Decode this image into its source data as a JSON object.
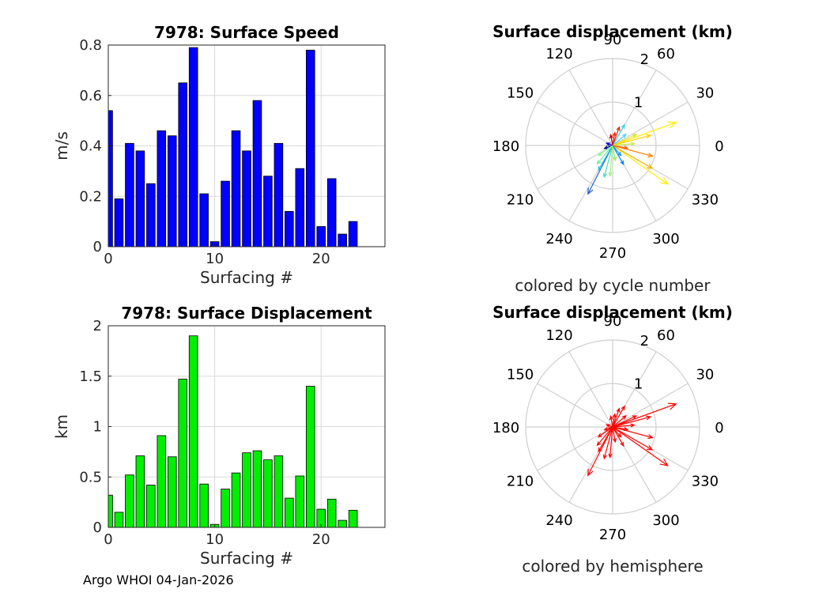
{
  "footer": "Argo WHOI 04-Jan-2026",
  "colors": {
    "speed_bar": "#0000ff",
    "disp_bar": "#00ee00",
    "grid": "#d9d9d9",
    "hemisphere_arrow": "#ff0000"
  },
  "chart_data": [
    {
      "id": "speed",
      "type": "bar",
      "title": "7978: Surface Speed",
      "xlabel": "Surfacing #",
      "ylabel": "m/s",
      "xlim": [
        0,
        26
      ],
      "ylim": [
        0,
        0.8
      ],
      "xticks": [
        0,
        10,
        20
      ],
      "xtick_labels": [
        "0",
        "10",
        "20"
      ],
      "yticks": [
        0,
        0.2,
        0.4,
        0.6,
        0.8
      ],
      "ytick_labels": [
        "0",
        "0.2",
        "0.4",
        "0.6",
        "0.8"
      ],
      "x": [
        0,
        1,
        2,
        3,
        4,
        5,
        6,
        7,
        8,
        9,
        10,
        11,
        12,
        13,
        14,
        15,
        16,
        17,
        18,
        19,
        20,
        21,
        22,
        23
      ],
      "values": [
        0.54,
        0.19,
        0.41,
        0.38,
        0.25,
        0.46,
        0.44,
        0.65,
        0.79,
        0.21,
        0.02,
        0.26,
        0.46,
        0.38,
        0.58,
        0.28,
        0.41,
        0.14,
        0.31,
        0.78,
        0.08,
        0.27,
        0.05,
        0.1
      ],
      "grid": true
    },
    {
      "id": "displacement",
      "type": "bar",
      "title": "7978: Surface Displacement",
      "xlabel": "Surfacing #",
      "ylabel": "km",
      "xlim": [
        0,
        26
      ],
      "ylim": [
        0,
        2
      ],
      "xticks": [
        0,
        10,
        20
      ],
      "xtick_labels": [
        "0",
        "10",
        "20"
      ],
      "yticks": [
        0,
        0.5,
        1,
        1.5,
        2
      ],
      "ytick_labels": [
        "0",
        "0.5",
        "1",
        "1.5",
        "2"
      ],
      "x": [
        0,
        1,
        2,
        3,
        4,
        5,
        6,
        7,
        8,
        9,
        10,
        11,
        12,
        13,
        14,
        15,
        16,
        17,
        18,
        19,
        20,
        21,
        22,
        23
      ],
      "values": [
        0.32,
        0.15,
        0.52,
        0.71,
        0.42,
        0.91,
        0.7,
        1.47,
        1.9,
        0.43,
        0.03,
        0.38,
        0.54,
        0.74,
        0.76,
        0.67,
        0.71,
        0.29,
        0.51,
        1.4,
        0.18,
        0.28,
        0.07,
        0.17
      ],
      "grid": true
    },
    {
      "id": "polar_cycle",
      "type": "polar-vectors",
      "title": "Surface displacement (km)",
      "caption": "colored by cycle number",
      "rmax": 2,
      "rticks": [
        1,
        2
      ],
      "rtick_labels": [
        "1",
        "2"
      ],
      "angle_ticks": [
        0,
        30,
        60,
        90,
        120,
        150,
        180,
        210,
        240,
        270,
        300,
        330
      ],
      "angle_labels": [
        "0",
        "30",
        "60",
        "90",
        "120",
        "150",
        "180",
        "210",
        "240",
        "270",
        "300",
        "330"
      ],
      "vectors": [
        {
          "angle": 20,
          "r": 1.55,
          "color": "#ffee00"
        },
        {
          "angle": 325,
          "r": 1.55,
          "color": "#ffee00"
        },
        {
          "angle": 243,
          "r": 1.25,
          "color": "#1f5fd0"
        },
        {
          "angle": 330,
          "r": 1.05,
          "color": "#f0b000"
        },
        {
          "angle": 345,
          "r": 0.95,
          "color": "#ff8000"
        },
        {
          "angle": 15,
          "r": 0.9,
          "color": "#ffd000"
        },
        {
          "angle": 60,
          "r": 0.55,
          "color": "#30d0f0"
        },
        {
          "angle": 70,
          "r": 0.45,
          "color": "#e03000"
        },
        {
          "angle": 255,
          "r": 0.75,
          "color": "#40e0b0"
        },
        {
          "angle": 265,
          "r": 0.7,
          "color": "#a0f080"
        },
        {
          "angle": 240,
          "r": 0.65,
          "color": "#20c0e0"
        },
        {
          "angle": 230,
          "r": 0.55,
          "color": "#60f0a0"
        },
        {
          "angle": 300,
          "r": 0.5,
          "color": "#0080ff"
        },
        {
          "angle": 5,
          "r": 0.5,
          "color": "#c0f040"
        },
        {
          "angle": 40,
          "r": 0.4,
          "color": "#50d0ff"
        },
        {
          "angle": 100,
          "r": 0.25,
          "color": "#c00000"
        },
        {
          "angle": 200,
          "r": 0.2,
          "color": "#000090"
        },
        {
          "angle": 160,
          "r": 0.15,
          "color": "#0000d0"
        },
        {
          "angle": 280,
          "r": 0.35,
          "color": "#90f060"
        },
        {
          "angle": 310,
          "r": 0.3,
          "color": "#2090ff"
        },
        {
          "angle": 25,
          "r": 0.6,
          "color": "#e0e020"
        },
        {
          "angle": 350,
          "r": 0.35,
          "color": "#ff6000"
        },
        {
          "angle": 215,
          "r": 0.4,
          "color": "#80ff80"
        },
        {
          "angle": 80,
          "r": 0.3,
          "color": "#ff2000"
        }
      ]
    },
    {
      "id": "polar_hemisphere",
      "type": "polar-vectors",
      "title": "Surface displacement (km)",
      "caption": "colored by hemisphere",
      "rmax": 2,
      "rticks": [
        1,
        2
      ],
      "rtick_labels": [
        "1",
        "2"
      ],
      "angle_ticks": [
        0,
        30,
        60,
        90,
        120,
        150,
        180,
        210,
        240,
        270,
        300,
        330
      ],
      "angle_labels": [
        "0",
        "30",
        "60",
        "90",
        "120",
        "150",
        "180",
        "210",
        "240",
        "270",
        "300",
        "330"
      ],
      "vectors": [
        {
          "angle": 20,
          "r": 1.55,
          "color": "#ff0000"
        },
        {
          "angle": 325,
          "r": 1.55,
          "color": "#ff0000"
        },
        {
          "angle": 243,
          "r": 1.25,
          "color": "#ff0000"
        },
        {
          "angle": 330,
          "r": 1.05,
          "color": "#ff0000"
        },
        {
          "angle": 345,
          "r": 0.95,
          "color": "#ff0000"
        },
        {
          "angle": 15,
          "r": 0.9,
          "color": "#ff0000"
        },
        {
          "angle": 60,
          "r": 0.55,
          "color": "#ff0000"
        },
        {
          "angle": 70,
          "r": 0.45,
          "color": "#ff0000"
        },
        {
          "angle": 255,
          "r": 0.75,
          "color": "#ff0000"
        },
        {
          "angle": 265,
          "r": 0.7,
          "color": "#ff0000"
        },
        {
          "angle": 240,
          "r": 0.65,
          "color": "#ff0000"
        },
        {
          "angle": 230,
          "r": 0.55,
          "color": "#ff0000"
        },
        {
          "angle": 300,
          "r": 0.5,
          "color": "#ff0000"
        },
        {
          "angle": 5,
          "r": 0.5,
          "color": "#ff0000"
        },
        {
          "angle": 40,
          "r": 0.4,
          "color": "#ff0000"
        },
        {
          "angle": 100,
          "r": 0.25,
          "color": "#ff0000"
        },
        {
          "angle": 200,
          "r": 0.2,
          "color": "#ff0000"
        },
        {
          "angle": 160,
          "r": 0.15,
          "color": "#ff0000"
        },
        {
          "angle": 280,
          "r": 0.35,
          "color": "#ff0000"
        },
        {
          "angle": 310,
          "r": 0.3,
          "color": "#ff0000"
        },
        {
          "angle": 25,
          "r": 0.6,
          "color": "#ff0000"
        },
        {
          "angle": 350,
          "r": 0.35,
          "color": "#ff0000"
        },
        {
          "angle": 215,
          "r": 0.4,
          "color": "#ff0000"
        },
        {
          "angle": 80,
          "r": 0.3,
          "color": "#ff0000"
        }
      ]
    }
  ]
}
